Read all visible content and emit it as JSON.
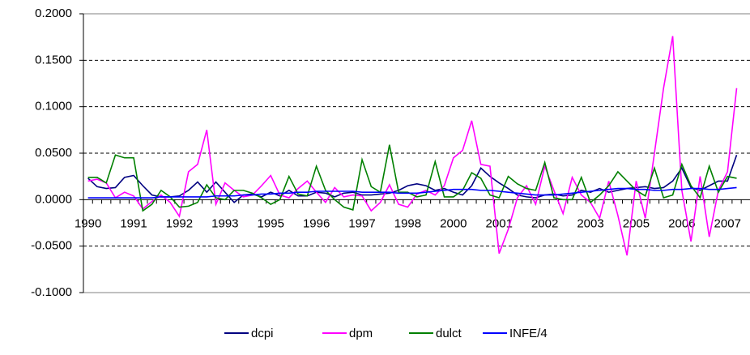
{
  "chart_data": {
    "type": "line",
    "categories": [
      "1990",
      null,
      null,
      null,
      null,
      "1991",
      null,
      null,
      null,
      null,
      "1992",
      null,
      null,
      null,
      null,
      "1993",
      null,
      null,
      null,
      null,
      "1995",
      null,
      null,
      null,
      null,
      "1996",
      null,
      null,
      null,
      null,
      "1997",
      null,
      null,
      null,
      null,
      "1998",
      null,
      null,
      null,
      null,
      "2000",
      null,
      null,
      null,
      null,
      "2001",
      null,
      null,
      null,
      null,
      "2002",
      null,
      null,
      null,
      null,
      "2003",
      null,
      null,
      null,
      null,
      "2005",
      null,
      null,
      null,
      null,
      "2006",
      null,
      null,
      null,
      null,
      "2007",
      null
    ],
    "series": [
      {
        "name": "dcpi",
        "color": "#000080",
        "values": [
          0.023,
          0.014,
          0.012,
          0.013,
          0.024,
          0.026,
          0.015,
          0.005,
          0.003,
          0.003,
          0.004,
          0.01,
          0.019,
          0.008,
          0.019,
          0.008,
          -0.003,
          0.005,
          0.006,
          0.003,
          0.008,
          0.004,
          0.01,
          0.004,
          0.004,
          0.008,
          0.007,
          0.003,
          0.007,
          0.008,
          0.005,
          0.005,
          0.006,
          0.007,
          0.01,
          0.015,
          0.017,
          0.015,
          0.01,
          0.012,
          0.008,
          0.005,
          0.015,
          0.034,
          0.025,
          0.018,
          0.012,
          0.005,
          0.003,
          0.002,
          0.005,
          0.006,
          0.004,
          0.005,
          0.01,
          0.008,
          0.012,
          0.008,
          0.01,
          0.012,
          0.013,
          0.014,
          0.012,
          0.013,
          0.02,
          0.034,
          0.013,
          0.01,
          0.015,
          0.02,
          0.02,
          0.048
        ]
      },
      {
        "name": "dpm",
        "color": "#ff00ff",
        "values": [
          0.02,
          0.022,
          0.018,
          0.002,
          0.008,
          0.004,
          -0.01,
          -0.002,
          0.005,
          -0.003,
          -0.018,
          0.03,
          0.038,
          0.075,
          -0.005,
          0.018,
          0.01,
          0.003,
          0.005,
          0.015,
          0.026,
          0.005,
          0.002,
          0.012,
          0.02,
          0.008,
          -0.003,
          0.013,
          0.003,
          0.005,
          0.004,
          -0.012,
          -0.003,
          0.016,
          -0.005,
          -0.008,
          0.006,
          0.01,
          0.005,
          0.015,
          0.045,
          0.053,
          0.085,
          0.038,
          0.036,
          -0.058,
          -0.032,
          0.002,
          0.015,
          -0.005,
          0.036,
          0.01,
          -0.015,
          0.024,
          0.005,
          -0.003,
          -0.02,
          0.02,
          -0.017,
          -0.06,
          0.02,
          -0.02,
          0.05,
          0.12,
          0.176,
          0.01,
          -0.045,
          0.025,
          -0.04,
          0.01,
          0.03,
          0.12
        ]
      },
      {
        "name": "dulct",
        "color": "#008000",
        "values": [
          0.024,
          0.024,
          0.018,
          0.048,
          0.045,
          0.045,
          -0.012,
          -0.005,
          0.01,
          0.003,
          -0.008,
          -0.007,
          -0.003,
          0.016,
          0.002,
          0.0,
          0.01,
          0.01,
          0.007,
          0.002,
          -0.005,
          0.0,
          0.025,
          0.006,
          0.004,
          0.036,
          0.01,
          0.0,
          -0.008,
          -0.011,
          0.043,
          0.014,
          0.008,
          0.059,
          0.008,
          0.008,
          0.003,
          0.005,
          0.041,
          0.003,
          0.003,
          0.01,
          0.029,
          0.023,
          0.005,
          0.002,
          0.025,
          0.017,
          0.012,
          0.01,
          0.04,
          0.002,
          0.0,
          0.0,
          0.024,
          -0.003,
          0.005,
          0.015,
          0.03,
          0.02,
          0.01,
          0.004,
          0.034,
          0.002,
          0.005,
          0.038,
          0.015,
          0.002,
          0.036,
          0.008,
          0.025,
          0.023
        ]
      },
      {
        "name": "INFE/4",
        "color": "#0000ff",
        "values": [
          0.002,
          0.002,
          0.002,
          0.002,
          0.002,
          0.002,
          0.002,
          0.002,
          0.003,
          0.003,
          0.003,
          0.003,
          0.003,
          0.003,
          0.004,
          0.004,
          0.004,
          0.005,
          0.005,
          0.006,
          0.006,
          0.007,
          0.007,
          0.008,
          0.008,
          0.009,
          0.009,
          0.009,
          0.009,
          0.009,
          0.008,
          0.008,
          0.008,
          0.008,
          0.007,
          0.007,
          0.007,
          0.008,
          0.009,
          0.01,
          0.011,
          0.011,
          0.011,
          0.01,
          0.01,
          0.009,
          0.008,
          0.007,
          0.006,
          0.005,
          0.005,
          0.005,
          0.006,
          0.007,
          0.008,
          0.009,
          0.01,
          0.011,
          0.012,
          0.012,
          0.011,
          0.011,
          0.01,
          0.01,
          0.011,
          0.011,
          0.012,
          0.012,
          0.011,
          0.011,
          0.012,
          0.013
        ]
      }
    ],
    "ylim": [
      -0.1,
      0.2
    ],
    "yticks": [
      {
        "value": -0.1,
        "label": "-0.1000"
      },
      {
        "value": -0.05,
        "label": "-0.0500"
      },
      {
        "value": 0,
        "label": "0.0000"
      },
      {
        "value": 0.05,
        "label": "0.0500"
      },
      {
        "value": 0.1,
        "label": "0.1000"
      },
      {
        "value": 0.15,
        "label": "0.1500"
      },
      {
        "value": 0.2,
        "label": "0.2000"
      }
    ],
    "grid": true,
    "legend": "bottom"
  }
}
